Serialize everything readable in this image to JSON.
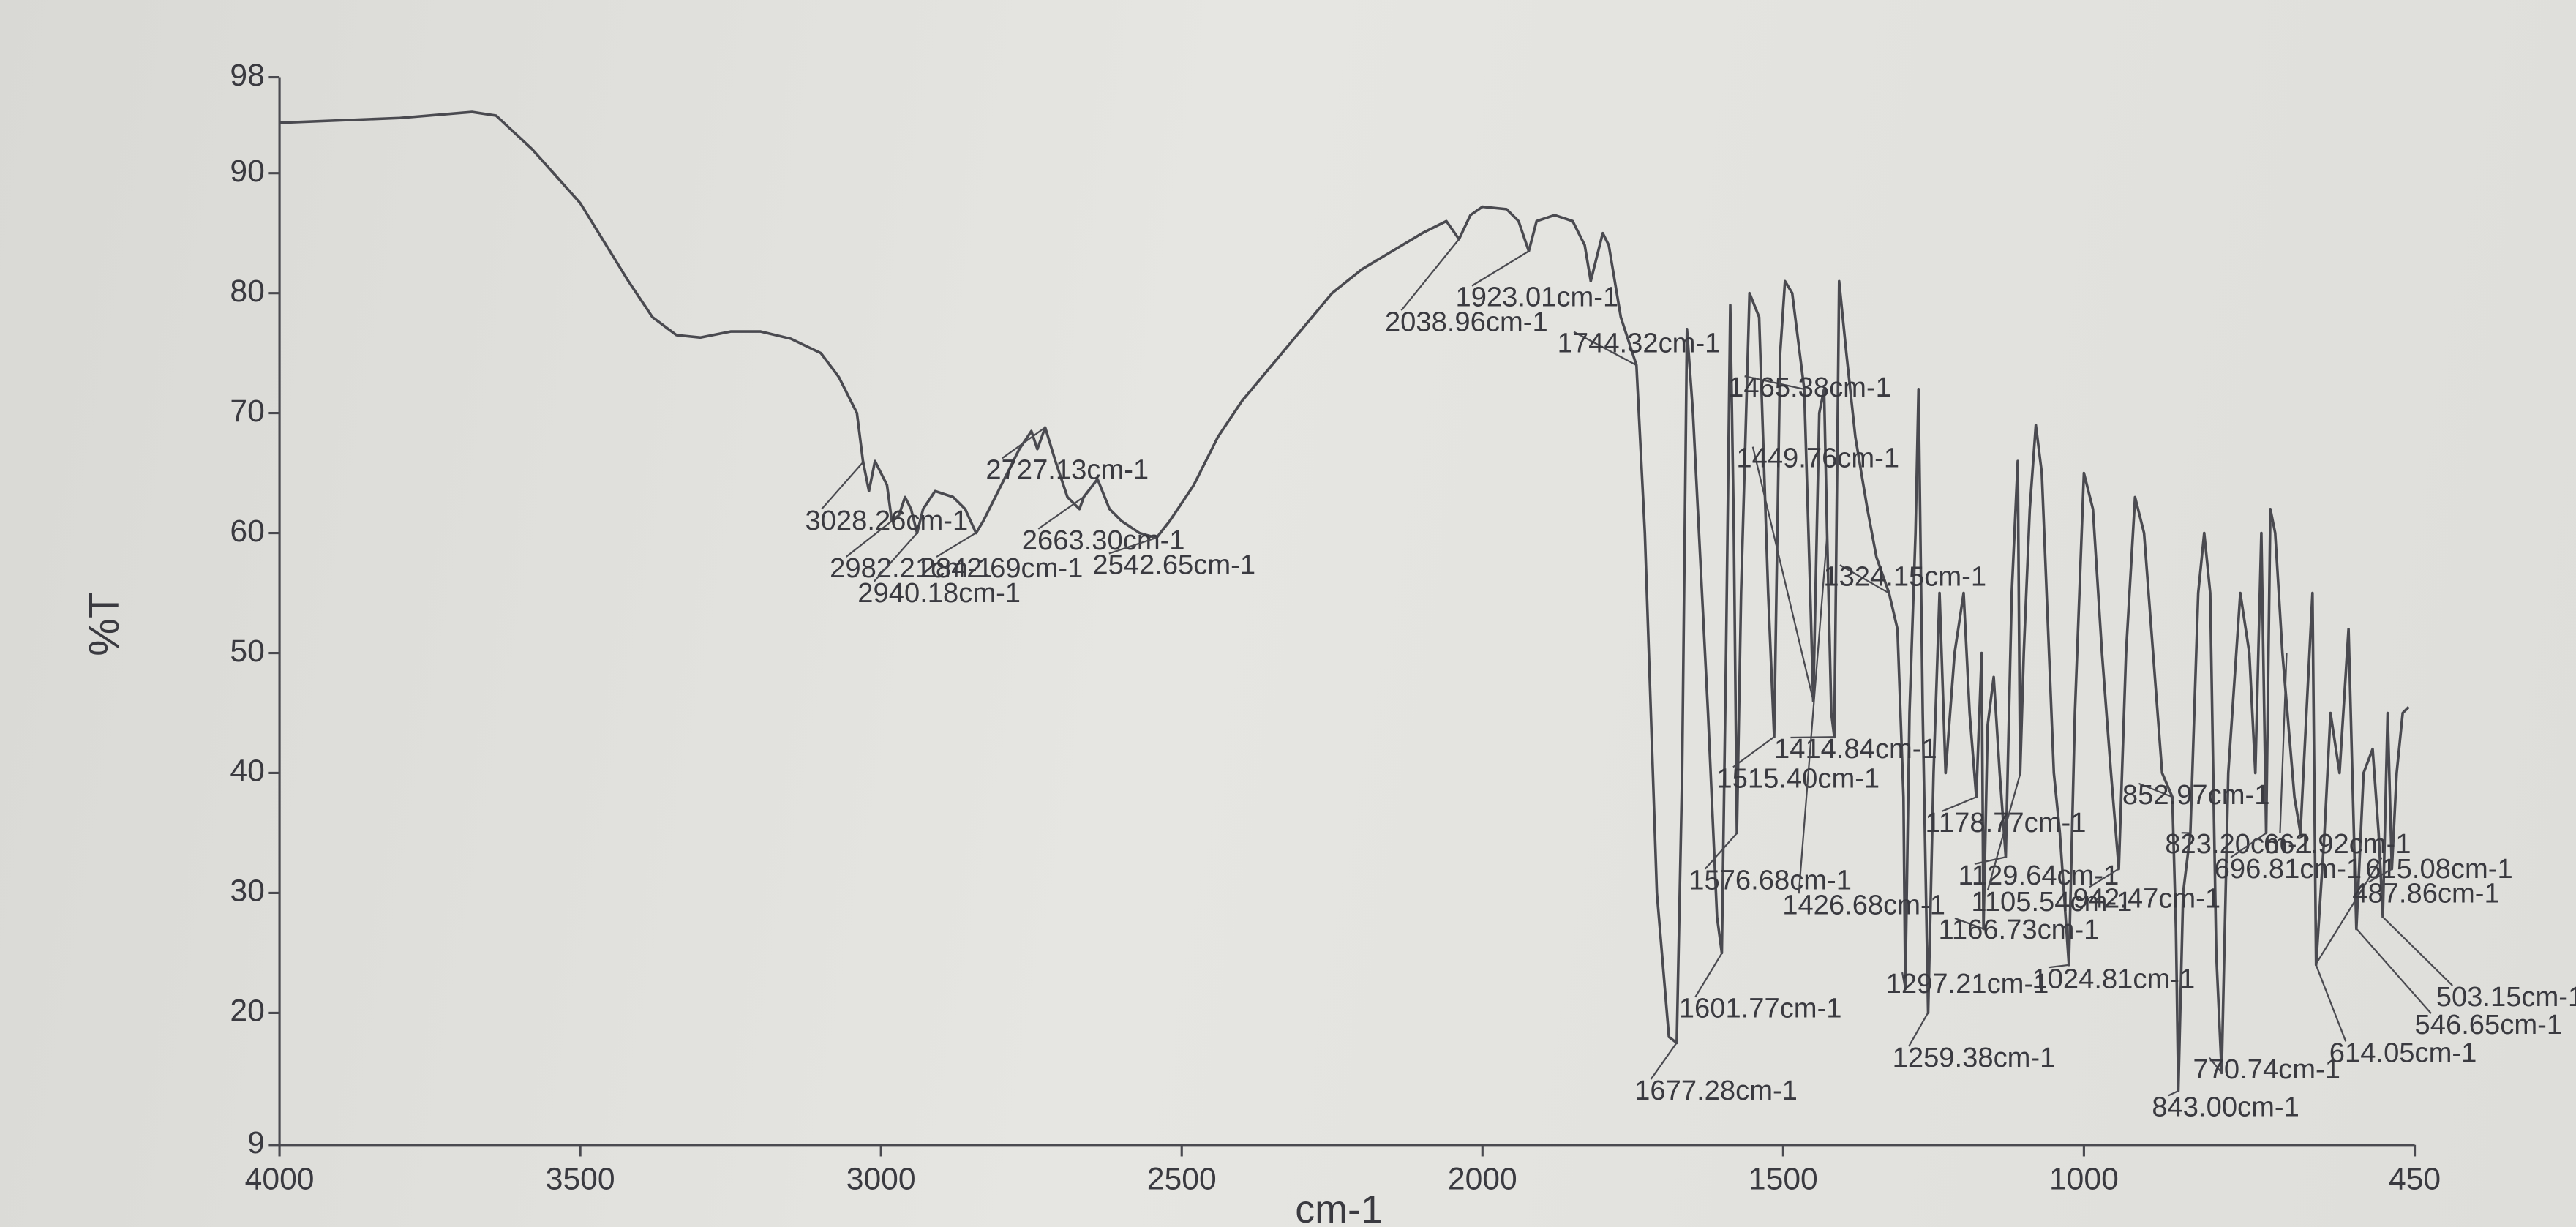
{
  "chart_data": {
    "type": "line",
    "y_label": "%T",
    "x_label": "cm-1",
    "xlim": [
      4000,
      450
    ],
    "ylim": [
      9,
      98
    ],
    "xticks": [
      4000,
      3500,
      3000,
      2500,
      2000,
      1500,
      1000,
      450
    ],
    "yticks": [
      9,
      20,
      30,
      40,
      50,
      60,
      70,
      80,
      90,
      98
    ],
    "series": [
      {
        "color": "#4a4a50",
        "x": [
          4000,
          3800,
          3680,
          3640,
          3580,
          3500,
          3420,
          3380,
          3340,
          3300,
          3250,
          3200,
          3150,
          3100,
          3070,
          3040,
          3030,
          3020,
          3010,
          2990,
          2982,
          2970,
          2960,
          2950,
          2940,
          2930,
          2910,
          2880,
          2860,
          2842,
          2830,
          2800,
          2770,
          2750,
          2740,
          2727,
          2710,
          2690,
          2670,
          2663,
          2640,
          2620,
          2600,
          2570,
          2542,
          2520,
          2480,
          2440,
          2400,
          2350,
          2300,
          2250,
          2200,
          2150,
          2100,
          2060,
          2039,
          2020,
          2000,
          1960,
          1940,
          1923,
          1910,
          1880,
          1850,
          1830,
          1820,
          1810,
          1800,
          1790,
          1770,
          1744,
          1730,
          1710,
          1690,
          1677,
          1668,
          1660,
          1650,
          1625,
          1610,
          1602,
          1595,
          1588,
          1582,
          1577,
          1570,
          1556,
          1540,
          1525,
          1515,
          1505,
          1497,
          1485,
          1465,
          1455,
          1450,
          1440,
          1432,
          1427,
          1420,
          1415,
          1407,
          1395,
          1380,
          1360,
          1345,
          1324,
          1310,
          1300,
          1297,
          1290,
          1280,
          1275,
          1268,
          1259,
          1250,
          1240,
          1230,
          1215,
          1200,
          1190,
          1179,
          1170,
          1167,
          1160,
          1150,
          1140,
          1130,
          1120,
          1110,
          1106,
          1100,
          1090,
          1080,
          1070,
          1050,
          1040,
          1025,
          1015,
          1000,
          985,
          970,
          955,
          942,
          930,
          915,
          900,
          885,
          870,
          853,
          847,
          843,
          835,
          823,
          810,
          800,
          790,
          780,
          771,
          760,
          740,
          725,
          715,
          705,
          697,
          690,
          682,
          670,
          650,
          640,
          630,
          620,
          614,
          600,
          590,
          575,
          560,
          547,
          535,
          520,
          510,
          503,
          495,
          488,
          480,
          470,
          460
        ],
        "values": [
          94.2,
          94.6,
          95.1,
          94.8,
          92,
          87.5,
          81,
          78,
          76.5,
          76.3,
          76.8,
          76.8,
          76.2,
          75,
          73,
          70,
          66,
          63.5,
          66,
          64,
          61,
          61.5,
          63,
          62,
          60,
          62,
          63.5,
          63,
          62,
          60,
          61,
          64,
          67,
          68.5,
          67,
          68.8,
          66,
          63,
          62,
          63,
          64.5,
          62,
          61,
          60,
          59.6,
          61,
          64,
          68,
          71,
          74,
          77,
          80,
          82,
          83.5,
          85,
          86,
          84.5,
          86.5,
          87.2,
          87,
          86,
          83.5,
          86,
          86.5,
          86,
          84,
          81,
          83,
          85,
          84,
          78,
          74,
          60,
          30,
          18,
          17.5,
          40,
          77,
          70,
          45,
          28,
          25,
          50,
          79,
          60,
          35,
          55,
          80,
          78,
          55,
          43,
          75,
          81,
          80,
          72,
          55,
          46,
          70,
          72,
          60,
          45,
          43,
          81,
          75,
          68,
          62,
          58,
          55,
          52,
          38,
          22,
          45,
          60,
          72,
          45,
          20,
          40,
          55,
          40,
          50,
          55,
          45,
          38,
          50,
          27,
          44,
          48,
          40,
          33,
          55,
          66,
          40,
          50,
          62,
          69,
          65,
          40,
          35,
          24,
          45,
          65,
          62,
          50,
          40,
          32,
          50,
          63,
          60,
          50,
          40,
          38,
          27,
          13.5,
          30,
          35,
          55,
          60,
          55,
          25,
          15,
          40,
          55,
          50,
          40,
          60,
          35,
          62,
          60,
          50,
          38,
          35,
          45,
          55,
          24,
          35,
          45,
          40,
          52,
          27,
          40,
          42,
          35,
          28,
          45,
          32,
          40,
          45,
          45.5
        ]
      }
    ],
    "annotations": [
      {
        "label": "3028.26cm-1",
        "x": 3028.26
      },
      {
        "label": "2982.21cm-1",
        "x": 2982.21
      },
      {
        "label": "2842.69cm-1",
        "x": 2842.69
      },
      {
        "label": "2940.18cm-1",
        "x": 2940.18
      },
      {
        "label": "2727.13cm-1",
        "x": 2727.13
      },
      {
        "label": "2663.30cm-1",
        "x": 2663.3
      },
      {
        "label": "2542.65cm-1",
        "x": 2542.65
      },
      {
        "label": "2038.96cm-1",
        "x": 2038.96
      },
      {
        "label": "1923.01cm-1",
        "x": 1923.01
      },
      {
        "label": "1744.32cm-1",
        "x": 1744.32
      },
      {
        "label": "1465.38cm-1",
        "x": 1465.38
      },
      {
        "label": "1449.76cm-1",
        "x": 1449.76
      },
      {
        "label": "1324.15cm-1",
        "x": 1324.15
      },
      {
        "label": "1414.84cm-1",
        "x": 1414.84
      },
      {
        "label": "1515.40cm-1",
        "x": 1515.4
      },
      {
        "label": "1178.77cm-1",
        "x": 1178.77
      },
      {
        "label": "852.97cm-1",
        "x": 852.97
      },
      {
        "label": "823.20cm-1",
        "x": 823.2
      },
      {
        "label": "662.92cm-1",
        "x": 662.92
      },
      {
        "label": "696.81cm-1",
        "x": 696.81
      },
      {
        "label": "615.08cm-1",
        "x": 615.08
      },
      {
        "label": "487.86cm-1",
        "x": 487.86
      },
      {
        "label": "1576.68cm-1",
        "x": 1576.68
      },
      {
        "label": "1426.68cm-1",
        "x": 1426.68
      },
      {
        "label": "1129.64cm-1",
        "x": 1129.64
      },
      {
        "label": "1105.54cm-1",
        "x": 1105.54
      },
      {
        "label": "942.47cm-1",
        "x": 942.47
      },
      {
        "label": "1166.73cm-1",
        "x": 1166.73
      },
      {
        "label": "1297.21cm-1",
        "x": 1297.21
      },
      {
        "label": "1024.81cm-1",
        "x": 1024.81
      },
      {
        "label": "1601.77cm-1",
        "x": 1601.77
      },
      {
        "label": "1259.38cm-1",
        "x": 1259.38
      },
      {
        "label": "1677.28cm-1",
        "x": 1677.28
      },
      {
        "label": "503.15cm-1",
        "x": 503.15
      },
      {
        "label": "546.65cm-1",
        "x": 546.65
      },
      {
        "label": "614.05cm-1",
        "x": 614.05
      },
      {
        "label": "770.74cm-1",
        "x": 770.74
      },
      {
        "label": "843.00cm-1",
        "x": 843.0
      }
    ]
  }
}
